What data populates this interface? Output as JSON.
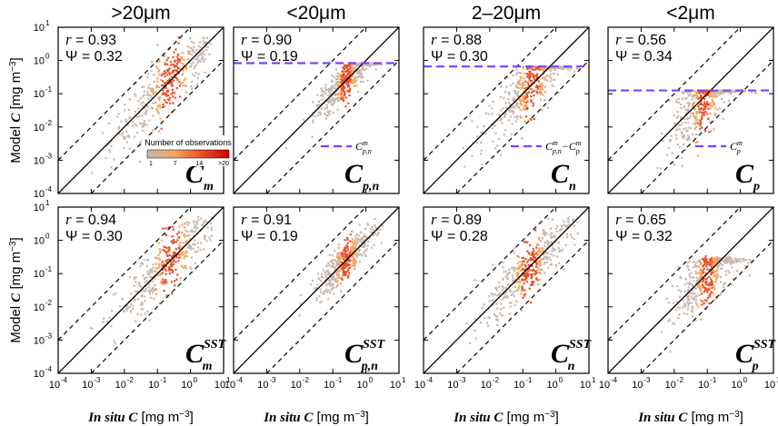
{
  "chart_data": {
    "type": "scatter",
    "column_titles": [
      ">20μm",
      "<20μm",
      "2–20μm",
      "<2μm"
    ],
    "x_axis": {
      "label_italic": "In situ C",
      "label_unit": " [mg m",
      "label_exp": "−3",
      "label_close": "]",
      "range_log10": [
        -4,
        1
      ],
      "ticks": [
        "10",
        "10",
        "10",
        "10",
        "10",
        "10"
      ],
      "tick_exponents": [
        "-4",
        "-3",
        "-2",
        "-1",
        "0",
        "1"
      ]
    },
    "y_axis": {
      "label_prefix": "Model ",
      "label_italic": "C",
      "label_unit": " [mg m",
      "label_exp": "−3",
      "label_close": "]",
      "range_log10": [
        -4,
        1
      ],
      "ticks": [
        "10",
        "10",
        "10",
        "10",
        "10",
        "10"
      ],
      "tick_exponents": [
        "-4",
        "-3",
        "-2",
        "-1",
        "0",
        "1"
      ]
    },
    "reference_lines": "1:1 line (solid) with ±1 order of magnitude (dashed)",
    "colorbar": {
      "title": "Number of observations",
      "ticks": [
        "1",
        "7",
        "14",
        ">20"
      ],
      "colors": [
        "#c8b8ae",
        "#f4a460",
        "#e8502a",
        "#cc0000"
      ]
    },
    "panels": [
      {
        "row": 1,
        "col": 1,
        "r": "0.93",
        "psi": "0.32",
        "label_main": "C",
        "label_sub": "m",
        "label_sup": "",
        "maxline_log10": null,
        "legend": null
      },
      {
        "row": 1,
        "col": 2,
        "r": "0.90",
        "psi": "0.19",
        "label_main": "C",
        "label_sub": "p,n",
        "label_sup": "",
        "maxline_log10": -0.08,
        "legend": {
          "text": "C",
          "sub": "p,n",
          "sup": "m"
        }
      },
      {
        "row": 1,
        "col": 3,
        "r": "0.88",
        "psi": "0.30",
        "label_main": "C",
        "label_sub": "n",
        "label_sup": "",
        "maxline_log10": -0.18,
        "legend": {
          "text": "C",
          "sub": "p,n",
          "sup": "m",
          "minus": "−C",
          "sub2": "p",
          "sup2": "m"
        }
      },
      {
        "row": 1,
        "col": 4,
        "r": "0.56",
        "psi": "0.34",
        "label_main": "C",
        "label_sub": "p",
        "label_sup": "",
        "maxline_log10": -0.9,
        "legend": {
          "text": "C",
          "sub": "p",
          "sup": "m"
        }
      },
      {
        "row": 2,
        "col": 1,
        "r": "0.94",
        "psi": "0.30",
        "label_main": "C",
        "label_sub": "m",
        "label_sup": "SST",
        "maxline_log10": null,
        "legend": null
      },
      {
        "row": 2,
        "col": 2,
        "r": "0.91",
        "psi": "0.19",
        "label_main": "C",
        "label_sub": "p,n",
        "label_sup": "SST",
        "maxline_log10": null,
        "legend": null
      },
      {
        "row": 2,
        "col": 3,
        "r": "0.89",
        "psi": "0.28",
        "label_main": "C",
        "label_sub": "n",
        "label_sup": "SST",
        "maxline_log10": null,
        "legend": null
      },
      {
        "row": 2,
        "col": 4,
        "r": "0.65",
        "psi": "0.32",
        "label_main": "C",
        "label_sub": "p",
        "label_sup": "SST",
        "maxline_log10": null,
        "legend": null
      }
    ],
    "stat_labels": {
      "r": "r",
      "psi": "Ψ",
      "eq": " = "
    },
    "colors": {
      "maxline": "#7f3fff",
      "frame": "#000000"
    }
  }
}
